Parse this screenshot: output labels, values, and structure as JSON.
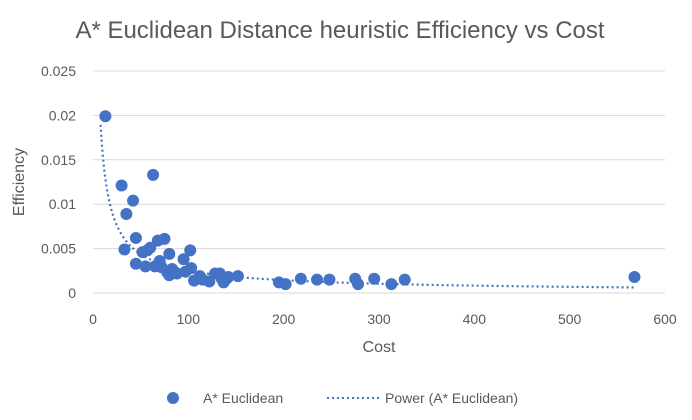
{
  "chart_data": {
    "type": "scatter",
    "title": "A* Euclidean Distance heuristic Efficiency vs Cost",
    "xlabel": "Cost",
    "ylabel": "Efficiency",
    "xlim": [
      0,
      600
    ],
    "ylim": [
      0,
      0.025
    ],
    "x_ticks": [
      0,
      100,
      200,
      300,
      400,
      500,
      600
    ],
    "x_tick_labels": [
      "0",
      "100",
      "200",
      "300",
      "400",
      "500",
      "600"
    ],
    "y_ticks": [
      0,
      0.005,
      0.01,
      0.015,
      0.02,
      0.025
    ],
    "y_tick_labels": [
      "0",
      "0.005",
      "0.01",
      "0.015",
      "0.02",
      "0.025"
    ],
    "grid": "horizontal",
    "legend_position": "bottom",
    "colors": {
      "marker": "#4472C4",
      "trendline": "#4472C4",
      "grid": "#d9d9d9",
      "axis_text": "#595959"
    },
    "series": [
      {
        "name": "A* Euclidean",
        "points": [
          [
            13,
            0.0199
          ],
          [
            30,
            0.0121
          ],
          [
            35,
            0.0089
          ],
          [
            33,
            0.0049
          ],
          [
            42,
            0.0104
          ],
          [
            45,
            0.0062
          ],
          [
            45,
            0.0033
          ],
          [
            52,
            0.0046
          ],
          [
            55,
            0.003
          ],
          [
            57,
            0.0048
          ],
          [
            60,
            0.0051
          ],
          [
            63,
            0.0133
          ],
          [
            65,
            0.003
          ],
          [
            68,
            0.0059
          ],
          [
            70,
            0.0036
          ],
          [
            72,
            0.0029
          ],
          [
            75,
            0.0061
          ],
          [
            78,
            0.0023
          ],
          [
            80,
            0.0044
          ],
          [
            80,
            0.002
          ],
          [
            83,
            0.0027
          ],
          [
            88,
            0.0022
          ],
          [
            95,
            0.0038
          ],
          [
            97,
            0.0024
          ],
          [
            102,
            0.0048
          ],
          [
            103,
            0.0028
          ],
          [
            106,
            0.0014
          ],
          [
            112,
            0.0019
          ],
          [
            115,
            0.0015
          ],
          [
            122,
            0.0013
          ],
          [
            128,
            0.0022
          ],
          [
            133,
            0.0022
          ],
          [
            135,
            0.0016
          ],
          [
            137,
            0.0012
          ],
          [
            140,
            0.0016
          ],
          [
            142,
            0.0018
          ],
          [
            152,
            0.0019
          ],
          [
            195,
            0.0012
          ],
          [
            202,
            0.001
          ],
          [
            218,
            0.0016
          ],
          [
            235,
            0.0015
          ],
          [
            248,
            0.0015
          ],
          [
            275,
            0.0016
          ],
          [
            278,
            0.001
          ],
          [
            295,
            0.0016
          ],
          [
            313,
            0.001
          ],
          [
            327,
            0.0015
          ],
          [
            568,
            0.0018
          ]
        ]
      }
    ],
    "trendline": {
      "name": "Power (A* Euclidean)",
      "type": "power",
      "coefficient": 0.1,
      "exponent": -0.8,
      "x_range": [
        8,
        570
      ]
    }
  }
}
